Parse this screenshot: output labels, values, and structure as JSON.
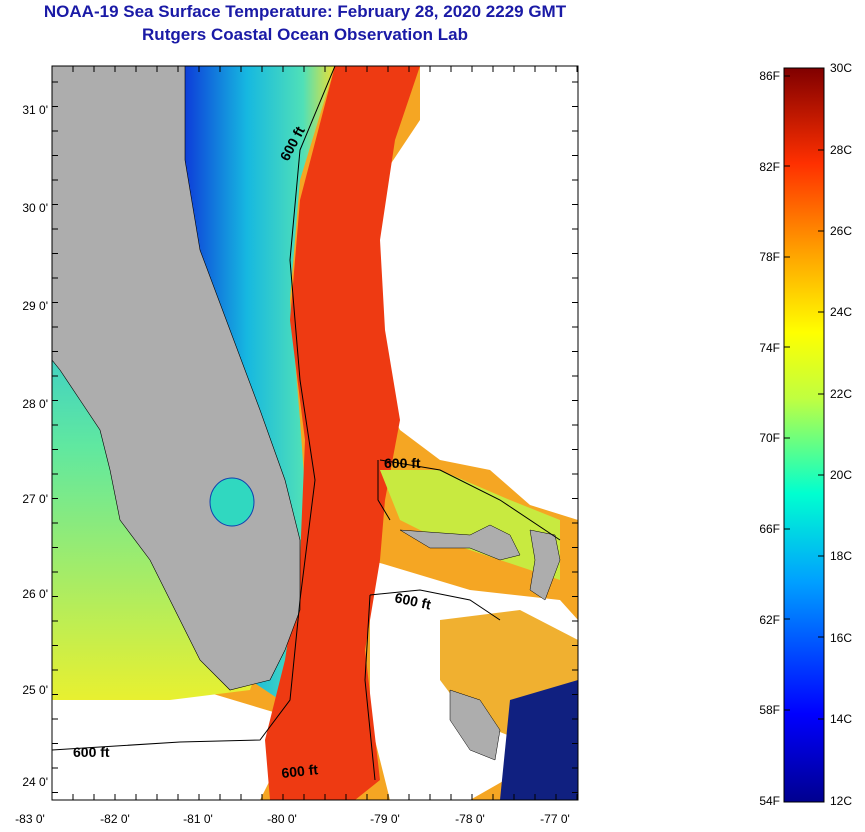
{
  "header": {
    "title": "NOAA-19 Sea Surface Temperature:  February 28, 2020 2229 GMT",
    "subtitle": "Rutgers Coastal Ocean Observation Lab"
  },
  "map": {
    "lat_labels": [
      "31 0'",
      "30 0'",
      "29 0'",
      "28 0'",
      "27 0'",
      "26 0'",
      "25 0'",
      "24 0'"
    ],
    "lon_labels": [
      "-83 0'",
      "-82 0'",
      "-81 0'",
      "-80 0'",
      "-79 0'",
      "-78 0'",
      "-77 0'"
    ],
    "contour_labels": [
      "600 ft",
      "600 ft",
      "600 ft",
      "600 ft",
      "600 ft"
    ],
    "colors": {
      "land": "#adadad",
      "cloud": "#ffffff",
      "gulf_stream": "#ee3a12",
      "shelf_cold": "#1230e0",
      "shelf_mid": "#14c8d8",
      "offshore_warm": "#f7a21a"
    }
  },
  "colorbar": {
    "f_labels": [
      "86F",
      "82F",
      "78F",
      "74F",
      "70F",
      "66F",
      "62F",
      "58F",
      "54F"
    ],
    "c_labels": [
      "30C",
      "28C",
      "26C",
      "24C",
      "22C",
      "20C",
      "18C",
      "16C",
      "14C",
      "12C"
    ]
  }
}
